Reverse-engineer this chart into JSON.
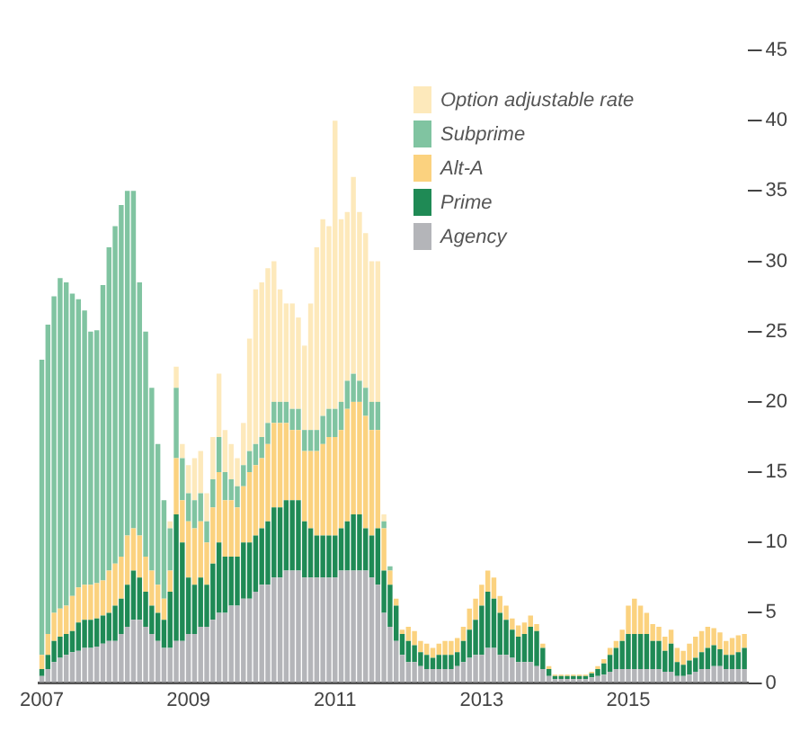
{
  "chart_data": {
    "type": "bar",
    "stacked": true,
    "legend": "top right",
    "grid": false,
    "categories": [
      "2007",
      null,
      null,
      null,
      null,
      null,
      null,
      null,
      null,
      null,
      null,
      null,
      null,
      null,
      null,
      null,
      null,
      null,
      null,
      null,
      null,
      null,
      null,
      null,
      "2009",
      null,
      null,
      null,
      null,
      null,
      null,
      null,
      null,
      null,
      null,
      null,
      null,
      null,
      null,
      null,
      null,
      null,
      null,
      null,
      null,
      null,
      null,
      null,
      "2011",
      null,
      null,
      null,
      null,
      null,
      null,
      null,
      null,
      null,
      null,
      null,
      null,
      null,
      null,
      null,
      null,
      null,
      null,
      null,
      null,
      null,
      null,
      null,
      "2013",
      null,
      null,
      null,
      null,
      null,
      null,
      null,
      null,
      null,
      null,
      null,
      null,
      null,
      null,
      null,
      null,
      null,
      null,
      null,
      null,
      null,
      null,
      null,
      "2015",
      null,
      null,
      null,
      null,
      null,
      null,
      null,
      null,
      null,
      null,
      null,
      null,
      null,
      null,
      null,
      null,
      null,
      null,
      null
    ],
    "ylim": [
      0,
      45
    ],
    "yticks": [
      0,
      5,
      10,
      15,
      20,
      25,
      30,
      35,
      40,
      45
    ],
    "series": [
      {
        "name": "Agency",
        "color": "#b4b5b9",
        "values": [
          0.5,
          1,
          1.5,
          1.8,
          2,
          2.2,
          2.3,
          2.5,
          2.5,
          2.6,
          2.8,
          3,
          3,
          3.5,
          4,
          4.5,
          4.5,
          4,
          3.5,
          3,
          2.5,
          2.5,
          3,
          3,
          3.5,
          3.5,
          4,
          4,
          4.5,
          5,
          5,
          5.5,
          5.5,
          6,
          6,
          6.5,
          7,
          7,
          7.5,
          7.5,
          8,
          8,
          8,
          7.5,
          7.5,
          7.5,
          7.5,
          7.5,
          7.5,
          8,
          8,
          8,
          8,
          8,
          7.5,
          7,
          5,
          4,
          3,
          2,
          1.5,
          1.5,
          1.2,
          1,
          1,
          1,
          1,
          1,
          1.2,
          1.5,
          1.8,
          2,
          2,
          2.5,
          2.5,
          2,
          2,
          1.8,
          1.5,
          1.5,
          1.5,
          1.2,
          1,
          0.5,
          0.3,
          0.3,
          0.3,
          0.3,
          0.3,
          0.3,
          0.4,
          0.5,
          0.6,
          0.8,
          1,
          1,
          1,
          1,
          1,
          1,
          1,
          1,
          0.8,
          0.8,
          0.5,
          0.5,
          0.6,
          0.8,
          1,
          1,
          1.2,
          1.2,
          1,
          1,
          1,
          1
        ]
      },
      {
        "name": "Prime",
        "color": "#1f8a55",
        "values": [
          0.5,
          1,
          1.5,
          1.5,
          1.5,
          1.5,
          2,
          2,
          2,
          2,
          2,
          2,
          2.5,
          2.5,
          3,
          3.5,
          3,
          2.5,
          2,
          2,
          2,
          4,
          9,
          7,
          4,
          3.5,
          3.5,
          3,
          4,
          5,
          4,
          3.5,
          3.5,
          4,
          4,
          4,
          4,
          4.5,
          5,
          5,
          5,
          5,
          5,
          4,
          3.5,
          3,
          3,
          3,
          3,
          3,
          3.5,
          4,
          4,
          3,
          3,
          4,
          3,
          3,
          2.5,
          1.5,
          1.5,
          1.2,
          1,
          1,
          0.8,
          1,
          1,
          1,
          1,
          1.5,
          2,
          2.5,
          3.5,
          4,
          3.5,
          3,
          2.5,
          2,
          1.8,
          2,
          2.5,
          2.5,
          1.5,
          0.5,
          0.2,
          0.2,
          0.2,
          0.2,
          0.2,
          0.2,
          0.3,
          0.5,
          0.8,
          1.2,
          1.5,
          2,
          2.5,
          2.5,
          2.5,
          2.5,
          2,
          2,
          1.5,
          2,
          1,
          0.8,
          1,
          1,
          1.2,
          1.5,
          1.5,
          1.2,
          1,
          1,
          1.2,
          1.5
        ]
      },
      {
        "name": "Alt-A",
        "color": "#fbd27f",
        "values": [
          1,
          1.5,
          2,
          2,
          2,
          2.5,
          2.5,
          2.5,
          2.5,
          2.5,
          2.5,
          3,
          3,
          3,
          3.5,
          3,
          3,
          2.5,
          2.5,
          2,
          1.5,
          1.5,
          4,
          3,
          4,
          4,
          4,
          3,
          4,
          5,
          4,
          4,
          3.5,
          4,
          5,
          5,
          5,
          5.5,
          6,
          6,
          5.5,
          5,
          5,
          5,
          5.5,
          6,
          6.5,
          7,
          7,
          7,
          8,
          8,
          8,
          8,
          7.5,
          7,
          3,
          1,
          0.5,
          0.3,
          1,
          1,
          0.8,
          0.8,
          0.7,
          0.8,
          1,
          1,
          1,
          1,
          1.5,
          1.5,
          1.5,
          1.5,
          1.5,
          1.2,
          1,
          0.8,
          0.8,
          0.8,
          0.8,
          0.5,
          0.3,
          0.2,
          0.1,
          0.1,
          0.1,
          0.1,
          0.1,
          0.1,
          0.1,
          0.2,
          0.3,
          0.5,
          0.5,
          0.8,
          2,
          2.5,
          2,
          1.5,
          1.2,
          1,
          1,
          1,
          1,
          1,
          1.2,
          1.5,
          1.5,
          1.5,
          1.2,
          1.2,
          1,
          1.2,
          1.2,
          1
        ]
      },
      {
        "name": "Subprime",
        "color": "#80c4a1",
        "values": [
          21,
          22,
          22.5,
          23.5,
          23,
          21.5,
          20.5,
          19.5,
          18,
          18,
          21,
          23,
          24,
          25,
          24.5,
          24,
          18,
          16,
          13,
          10,
          7,
          3,
          5,
          3,
          2,
          2,
          2,
          1.5,
          2,
          2.5,
          2,
          1.5,
          1.5,
          1.5,
          1.5,
          1.5,
          1.5,
          1.5,
          1.5,
          1.5,
          1.5,
          1.5,
          1.5,
          1.5,
          1.5,
          1.5,
          2,
          2,
          2,
          2,
          2,
          2,
          1.5,
          2,
          2,
          2,
          0.5,
          0.3,
          0,
          0,
          0,
          0,
          0,
          0,
          0,
          0,
          0,
          0,
          0,
          0,
          0,
          0,
          0,
          0,
          0,
          0,
          0,
          0,
          0,
          0,
          0,
          0,
          0,
          0,
          0,
          0,
          0,
          0,
          0,
          0,
          0,
          0,
          0,
          0,
          0,
          0,
          0,
          0,
          0,
          0,
          0,
          0,
          0,
          0,
          0,
          0,
          0,
          0,
          0,
          0,
          0,
          0,
          0,
          0,
          0,
          0
        ]
      },
      {
        "name": "Option adjustable rate",
        "color": "#fde9bb",
        "values": [
          0,
          0,
          0,
          0,
          0,
          0,
          0,
          0,
          0,
          0,
          0,
          0,
          0,
          0,
          0,
          0,
          0,
          0,
          0,
          0,
          0,
          0.5,
          1.5,
          1,
          2,
          3,
          3,
          2,
          3,
          4.5,
          3,
          2.5,
          2,
          3,
          8,
          11,
          11,
          11,
          10,
          8,
          7,
          7.5,
          6.5,
          6,
          9,
          13,
          14,
          13,
          20.5,
          13,
          12,
          14,
          12,
          11,
          10,
          10,
          0.5,
          0,
          0,
          0,
          0,
          0,
          0,
          0,
          0,
          0,
          0,
          0,
          0,
          0,
          0,
          0,
          0,
          0,
          0,
          0,
          0,
          0,
          0,
          0,
          0,
          0,
          0,
          0,
          0,
          0,
          0,
          0,
          0,
          0,
          0,
          0,
          0,
          0,
          0,
          0,
          0,
          0,
          0,
          0,
          0,
          0,
          0,
          0,
          0,
          0,
          0,
          0,
          0,
          0,
          0,
          0,
          0,
          0,
          0,
          0
        ]
      }
    ]
  }
}
